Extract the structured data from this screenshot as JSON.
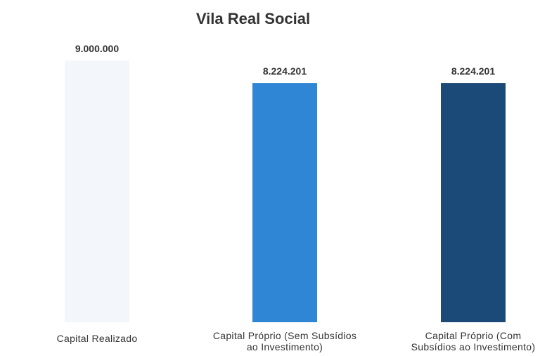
{
  "chart_data": {
    "type": "bar",
    "title": "Vila Real Social",
    "categories": [
      [
        "Capital Realizado"
      ],
      [
        "Capital Próprio (Sem Subsídios",
        "ao Investimento)"
      ],
      [
        "Capital Próprio (Com",
        "Subsídios ao Investimento)"
      ]
    ],
    "values": [
      9000000,
      8224201,
      8224201
    ],
    "value_labels": [
      "9.000.000",
      "8.224.201",
      "8.224.201"
    ],
    "colors": [
      "#f3f7fb",
      "#2f86d4",
      "#1c4a78"
    ],
    "xlabel": "",
    "ylabel": "",
    "ylim": [
      0,
      9000000
    ],
    "grid": false,
    "legend": "none"
  }
}
